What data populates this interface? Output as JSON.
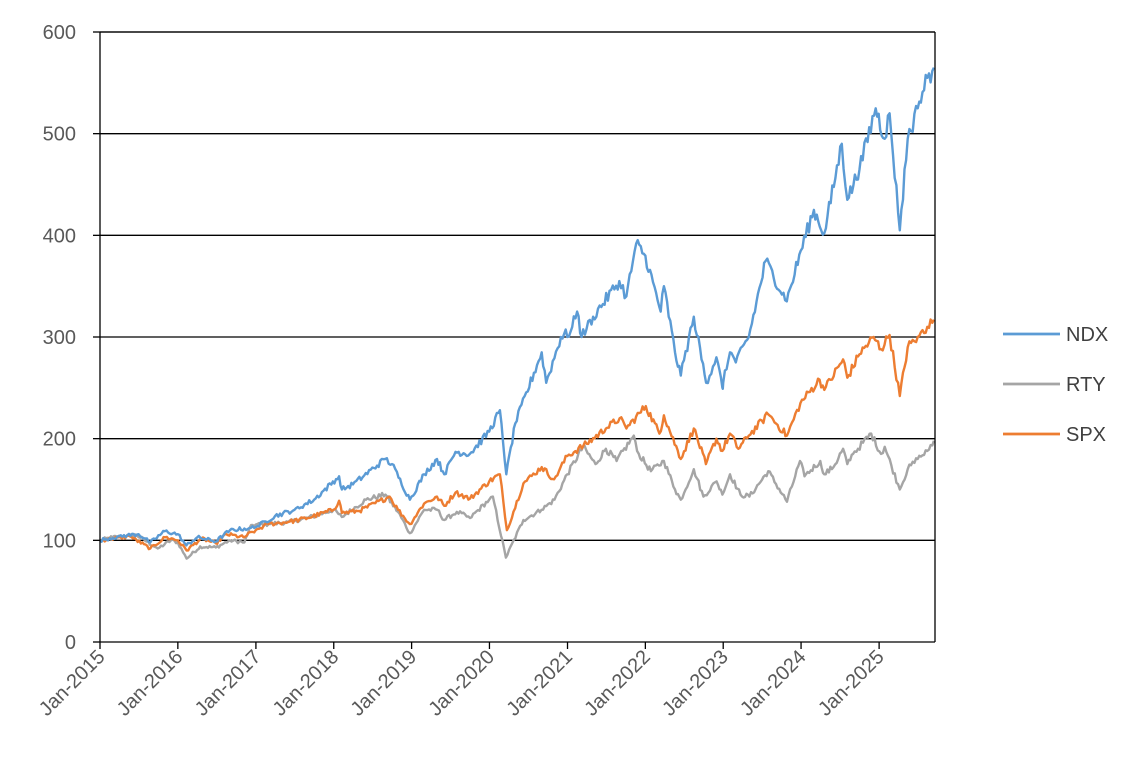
{
  "chart_data": {
    "type": "line",
    "title": "",
    "xlabel": "",
    "ylabel": "",
    "ylim": [
      0,
      600
    ],
    "y_ticks": [
      0,
      100,
      200,
      300,
      400,
      500,
      600
    ],
    "x_range": [
      "2015-01",
      "2025-09"
    ],
    "x_tick_labels": [
      "Jan-2015",
      "Jan-2016",
      "Jan-2017",
      "Jan-2018",
      "Jan-2019",
      "Jan-2020",
      "Jan-2021",
      "Jan-2022",
      "Jan-2023",
      "Jan-2024",
      "Jan-2025"
    ],
    "grid": {
      "horizontal": true,
      "vertical": false
    },
    "legend": {
      "position": "right"
    },
    "series": [
      {
        "name": "NDX",
        "color": "#5b9bd5",
        "points": [
          [
            "2015-01-01",
            100
          ],
          [
            "2015-04-01",
            104
          ],
          [
            "2015-07-01",
            106
          ],
          [
            "2015-08-25",
            98
          ],
          [
            "2015-11-01",
            109
          ],
          [
            "2016-01-01",
            106
          ],
          [
            "2016-02-10",
            95
          ],
          [
            "2016-04-01",
            103
          ],
          [
            "2016-06-27",
            99
          ],
          [
            "2016-09-01",
            110
          ],
          [
            "2016-12-01",
            112
          ],
          [
            "2017-01-01",
            113
          ],
          [
            "2017-04-01",
            124
          ],
          [
            "2017-07-01",
            130
          ],
          [
            "2017-10-01",
            140
          ],
          [
            "2018-01-26",
            163
          ],
          [
            "2018-02-08",
            150
          ],
          [
            "2018-04-01",
            155
          ],
          [
            "2018-08-30",
            180
          ],
          [
            "2018-10-01",
            175
          ],
          [
            "2018-12-24",
            140
          ],
          [
            "2019-03-01",
            165
          ],
          [
            "2019-04-30",
            180
          ],
          [
            "2019-06-03",
            165
          ],
          [
            "2019-07-26",
            187
          ],
          [
            "2019-10-01",
            185
          ],
          [
            "2019-12-31",
            207
          ],
          [
            "2020-02-19",
            228
          ],
          [
            "2020-03-20",
            165
          ],
          [
            "2020-05-01",
            215
          ],
          [
            "2020-09-02",
            285
          ],
          [
            "2020-09-23",
            255
          ],
          [
            "2020-12-01",
            300
          ],
          [
            "2021-01-15",
            305
          ],
          [
            "2021-02-15",
            325
          ],
          [
            "2021-03-08",
            300
          ],
          [
            "2021-05-01",
            320
          ],
          [
            "2021-09-01",
            355
          ],
          [
            "2021-10-04",
            340
          ],
          [
            "2021-11-19",
            392
          ],
          [
            "2022-01-01",
            380
          ],
          [
            "2022-03-14",
            325
          ],
          [
            "2022-03-29",
            350
          ],
          [
            "2022-05-20",
            285
          ],
          [
            "2022-06-16",
            262
          ],
          [
            "2022-08-16",
            320
          ],
          [
            "2022-10-13",
            255
          ],
          [
            "2022-11-30",
            280
          ],
          [
            "2022-12-28",
            250
          ],
          [
            "2023-01-01",
            255
          ],
          [
            "2023-02-02",
            285
          ],
          [
            "2023-03-01",
            275
          ],
          [
            "2023-05-01",
            300
          ],
          [
            "2023-07-19",
            375
          ],
          [
            "2023-10-26",
            335
          ],
          [
            "2023-12-31",
            385
          ],
          [
            "2024-03-01",
            425
          ],
          [
            "2024-04-19",
            402
          ],
          [
            "2024-07-10",
            490
          ],
          [
            "2024-08-05",
            435
          ],
          [
            "2024-10-01",
            465
          ],
          [
            "2024-12-16",
            525
          ],
          [
            "2025-01-27",
            495
          ],
          [
            "2025-02-19",
            520
          ],
          [
            "2025-04-08",
            405
          ],
          [
            "2025-05-15",
            495
          ],
          [
            "2025-07-01",
            525
          ],
          [
            "2025-08-15",
            555
          ],
          [
            "2025-09-15",
            565
          ]
        ]
      },
      {
        "name": "RTY",
        "color": "#a5a5a5",
        "points": [
          [
            "2015-01-01",
            100
          ],
          [
            "2015-03-01",
            103
          ],
          [
            "2015-06-23",
            105
          ],
          [
            "2015-09-29",
            92
          ],
          [
            "2015-11-30",
            100
          ],
          [
            "2016-01-01",
            98
          ],
          [
            "2016-02-11",
            82
          ],
          [
            "2016-04-15",
            94
          ],
          [
            "2016-06-27",
            93
          ],
          [
            "2016-09-01",
            100
          ],
          [
            "2016-11-08",
            98
          ],
          [
            "2016-12-09",
            115
          ],
          [
            "2017-03-01",
            116
          ],
          [
            "2017-06-01",
            118
          ],
          [
            "2017-09-01",
            122
          ],
          [
            "2017-12-31",
            130
          ],
          [
            "2018-02-08",
            123
          ],
          [
            "2018-06-01",
            140
          ],
          [
            "2018-08-31",
            145
          ],
          [
            "2018-10-29",
            128
          ],
          [
            "2018-12-24",
            107
          ],
          [
            "2019-03-01",
            130
          ],
          [
            "2019-05-01",
            130
          ],
          [
            "2019-06-03",
            120
          ],
          [
            "2019-08-01",
            128
          ],
          [
            "2019-10-02",
            122
          ],
          [
            "2019-12-31",
            140
          ],
          [
            "2020-01-17",
            143
          ],
          [
            "2020-03-18",
            83
          ],
          [
            "2020-06-08",
            120
          ],
          [
            "2020-09-01",
            130
          ],
          [
            "2020-11-01",
            140
          ],
          [
            "2020-12-31",
            165
          ],
          [
            "2021-03-15",
            192
          ],
          [
            "2021-05-12",
            175
          ],
          [
            "2021-06-30",
            190
          ],
          [
            "2021-08-19",
            178
          ],
          [
            "2021-11-08",
            203
          ],
          [
            "2021-12-01",
            185
          ],
          [
            "2022-01-27",
            168
          ],
          [
            "2022-03-29",
            178
          ],
          [
            "2022-05-20",
            150
          ],
          [
            "2022-06-16",
            140
          ],
          [
            "2022-08-16",
            170
          ],
          [
            "2022-09-30",
            143
          ],
          [
            "2022-12-01",
            158
          ],
          [
            "2022-12-28",
            145
          ],
          [
            "2023-02-02",
            165
          ],
          [
            "2023-03-23",
            145
          ],
          [
            "2023-05-04",
            143
          ],
          [
            "2023-07-31",
            168
          ],
          [
            "2023-10-27",
            138
          ],
          [
            "2023-12-27",
            178
          ],
          [
            "2024-01-17",
            163
          ],
          [
            "2024-03-31",
            178
          ],
          [
            "2024-04-19",
            165
          ],
          [
            "2024-06-01",
            172
          ],
          [
            "2024-07-16",
            190
          ],
          [
            "2024-08-05",
            175
          ],
          [
            "2024-09-01",
            185
          ],
          [
            "2024-11-25",
            205
          ],
          [
            "2025-01-10",
            185
          ],
          [
            "2025-01-27",
            192
          ],
          [
            "2025-04-08",
            150
          ],
          [
            "2025-05-15",
            170
          ],
          [
            "2025-07-01",
            180
          ],
          [
            "2025-08-15",
            188
          ],
          [
            "2025-09-15",
            198
          ]
        ]
      },
      {
        "name": "SPX",
        "color": "#ed7d31",
        "points": [
          [
            "2015-01-01",
            100
          ],
          [
            "2015-05-21",
            104
          ],
          [
            "2015-08-25",
            92
          ],
          [
            "2015-11-03",
            103
          ],
          [
            "2016-01-01",
            100
          ],
          [
            "2016-02-11",
            90
          ],
          [
            "2016-04-20",
            102
          ],
          [
            "2016-06-27",
            97
          ],
          [
            "2016-08-15",
            106
          ],
          [
            "2016-11-04",
            103
          ],
          [
            "2016-12-31",
            110
          ],
          [
            "2017-03-01",
            116
          ],
          [
            "2017-06-01",
            118
          ],
          [
            "2017-09-01",
            122
          ],
          [
            "2017-12-31",
            130
          ],
          [
            "2018-01-26",
            139
          ],
          [
            "2018-02-08",
            127
          ],
          [
            "2018-05-01",
            129
          ],
          [
            "2018-09-20",
            143
          ],
          [
            "2018-10-29",
            130
          ],
          [
            "2018-12-24",
            116
          ],
          [
            "2019-02-28",
            136
          ],
          [
            "2019-04-30",
            143
          ],
          [
            "2019-06-03",
            134
          ],
          [
            "2019-07-26",
            147
          ],
          [
            "2019-10-02",
            141
          ],
          [
            "2019-12-31",
            158
          ],
          [
            "2020-02-19",
            165
          ],
          [
            "2020-03-23",
            110
          ],
          [
            "2020-06-08",
            156
          ],
          [
            "2020-09-02",
            172
          ],
          [
            "2020-10-30",
            160
          ],
          [
            "2020-12-31",
            183
          ],
          [
            "2021-04-01",
            195
          ],
          [
            "2021-06-30",
            210
          ],
          [
            "2021-09-02",
            220
          ],
          [
            "2021-10-04",
            210
          ],
          [
            "2022-01-03",
            232
          ],
          [
            "2022-03-08",
            205
          ],
          [
            "2022-03-29",
            223
          ],
          [
            "2022-06-16",
            180
          ],
          [
            "2022-08-16",
            210
          ],
          [
            "2022-10-12",
            175
          ],
          [
            "2022-11-30",
            200
          ],
          [
            "2022-12-28",
            188
          ],
          [
            "2023-02-02",
            205
          ],
          [
            "2023-03-13",
            190
          ],
          [
            "2023-05-01",
            203
          ],
          [
            "2023-07-31",
            224
          ],
          [
            "2023-10-27",
            203
          ],
          [
            "2023-12-29",
            235
          ],
          [
            "2024-03-28",
            258
          ],
          [
            "2024-04-19",
            248
          ],
          [
            "2024-07-16",
            278
          ],
          [
            "2024-08-05",
            260
          ],
          [
            "2024-10-01",
            283
          ],
          [
            "2024-12-06",
            300
          ],
          [
            "2025-01-10",
            288
          ],
          [
            "2025-02-19",
            302
          ],
          [
            "2025-04-08",
            242
          ],
          [
            "2025-05-15",
            290
          ],
          [
            "2025-07-01",
            300
          ],
          [
            "2025-08-15",
            310
          ],
          [
            "2025-09-15",
            317
          ]
        ]
      }
    ]
  }
}
